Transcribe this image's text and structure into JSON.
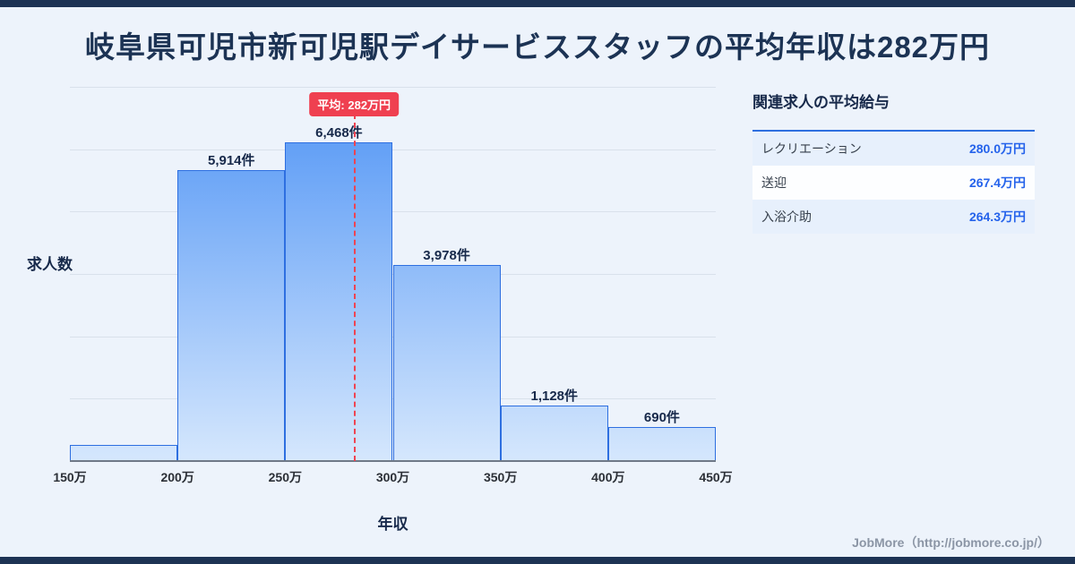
{
  "page": {
    "title": "岐阜県可児市新可児駅デイサービススタッフの平均年収は282万円",
    "footer_credit": "JobMore（http://jobmore.co.jp/）"
  },
  "chart_data": {
    "type": "bar",
    "title": "",
    "xlabel": "年収",
    "ylabel": "求人数",
    "categories": [
      "150万",
      "200万",
      "250万",
      "300万",
      "350万",
      "400万",
      "450万"
    ],
    "xrange": [
      150,
      450
    ],
    "ylim": [
      0,
      7600
    ],
    "grid": "horizontal",
    "bins": [
      {
        "range": "150万-200万",
        "count": 330,
        "label": ""
      },
      {
        "range": "200万-250万",
        "count": 5914,
        "label": "5,914件"
      },
      {
        "range": "250万-300万",
        "count": 6468,
        "label": "6,468件"
      },
      {
        "range": "300万-350万",
        "count": 3978,
        "label": "3,978件"
      },
      {
        "range": "350万-400万",
        "count": 1128,
        "label": "1,128件"
      },
      {
        "range": "400万-450万",
        "count": 690,
        "label": "690件"
      }
    ],
    "average_line": {
      "value": 282,
      "label": "平均: 282万円"
    }
  },
  "related_jobs": {
    "title": "関連求人の平均給与",
    "rows": [
      {
        "name": "レクリエーション",
        "salary": "280.0万円"
      },
      {
        "name": "送迎",
        "salary": "267.4万円"
      },
      {
        "name": "入浴介助",
        "salary": "264.3万円"
      }
    ]
  },
  "colors": {
    "accent_navy": "#1d3354",
    "bar_border": "#2e6fe0",
    "bar_top": "#4e93f5",
    "bar_bottom": "#d5e7fd",
    "average_red": "#ef4050",
    "salary_blue": "#2563eb",
    "background": "#edf3fb"
  }
}
